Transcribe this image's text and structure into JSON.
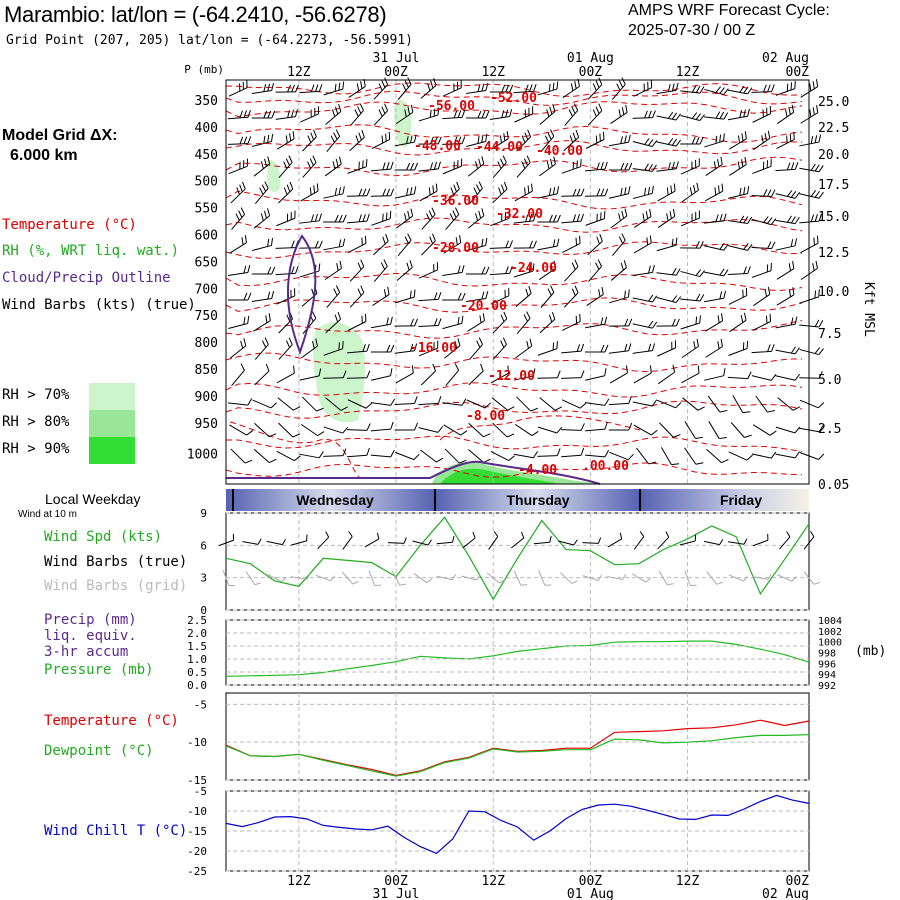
{
  "header": {
    "station_title": "Marambio:  lat/lon = (-64.2410, -56.6278)",
    "grid_point": "Grid Point (207, 205) lat/lon = (-64.2273, -56.5991)",
    "cycle_title": "AMPS WRF Forecast Cycle:",
    "cycle_value": "2025-07-30 / 00  Z"
  },
  "model_grid": {
    "label": "Model Grid ΔX:",
    "value": "6.000 km"
  },
  "time_axis": {
    "hour_labels": [
      "12Z",
      "00Z",
      "12Z",
      "00Z",
      "12Z",
      "00Z"
    ],
    "date_labels": [
      "31 Jul",
      "01 Aug",
      "02 Aug"
    ]
  },
  "weekdays": {
    "title": "Local Weekday",
    "wind_note": "Wind at 10 m",
    "days": [
      "Wednesday",
      "Thursday",
      "Friday"
    ]
  },
  "colors": {
    "temperature": "#e00000",
    "rh": "#22aa22",
    "cloud": "#5a2a8a",
    "wind": "#000000",
    "windchill": "#0000cc",
    "dewpoint": "#22bb22",
    "pressure": "#22bb22"
  },
  "cross_section": {
    "p_label": "P (mb)",
    "pressure_ticks": [
      "350",
      "400",
      "450",
      "500",
      "550",
      "600",
      "650",
      "700",
      "750",
      "800",
      "850",
      "900",
      "950",
      "1000"
    ],
    "height_ticks": [
      "25.0",
      "22.5",
      "20.0",
      "17.5",
      "15.0",
      "12.5",
      "10.0",
      "7.5",
      "5.0",
      "2.5",
      "0.05"
    ],
    "height_unit": "Kft MSL",
    "legend": {
      "temperature": "Temperature (°C)",
      "rh": "RH (%, WRT liq. wat.)",
      "cloud": "Cloud/Precip Outline",
      "wind": "Wind Barbs (kts) (true)"
    },
    "rh_levels": [
      "RH > 70%",
      "RH > 80%",
      "RH > 90%"
    ],
    "isotherm_labels": [
      "-56.00",
      "-52.00",
      "-48.00",
      "-44.00",
      "-40.00",
      "-36.00",
      "-32.00",
      "-28.00",
      "-24.00",
      "-20.00",
      "-16.00",
      "-12.00",
      "-8.00",
      "-4.00",
      ".00.00"
    ]
  },
  "panels": {
    "wind": {
      "labels": [
        "Wind Spd (kts)",
        "Wind Barbs (true)",
        "Wind Barbs (grid)"
      ],
      "yticks": [
        "9",
        "6",
        "3",
        "0"
      ]
    },
    "precip": {
      "labels": [
        "Precip (mm)",
        "liq. equiv.",
        "3-hr accum",
        "Pressure (mb)"
      ],
      "yticks": [
        "2.5",
        "2.0",
        "1.5",
        "1.0",
        "0.5",
        "0.0"
      ],
      "y2ticks": [
        "1004",
        "1002",
        "1000",
        "998",
        "996",
        "994",
        "992"
      ],
      "y2unit": "(mb)"
    },
    "temp": {
      "labels": [
        "Temperature (°C)",
        "Dewpoint (°C)"
      ],
      "yticks": [
        "-5",
        "-10",
        "-15"
      ]
    },
    "windchill": {
      "labels": [
        "Wind Chill T (°C)"
      ],
      "yticks": [
        "-5",
        "-10",
        "-15",
        "-20",
        "-25"
      ]
    }
  },
  "chart_data": [
    {
      "type": "line",
      "title": "Wind Spd (kts)",
      "x_hours": [
        0,
        3,
        6,
        9,
        12,
        15,
        18,
        21,
        24,
        27,
        30,
        33,
        36,
        39,
        42,
        45,
        48,
        51,
        54,
        57,
        60,
        63,
        66,
        69,
        72
      ],
      "series": [
        {
          "name": "Wind Spd (kts)",
          "values": [
            4.8,
            4.3,
            2.7,
            2.2,
            4.8,
            4.6,
            4.4,
            3.1,
            6.0,
            8.6,
            5.0,
            1.0,
            4.8,
            8.3,
            5.6,
            5.5,
            4.2,
            4.3,
            5.6,
            6.6,
            7.8,
            6.8,
            1.5,
            4.7,
            8.0
          ]
        }
      ],
      "ylim": [
        0,
        9
      ]
    },
    {
      "type": "line",
      "title": "Pressure (mb)",
      "x_hours": [
        0,
        3,
        6,
        9,
        12,
        15,
        18,
        21,
        24,
        27,
        30,
        33,
        36,
        39,
        42,
        45,
        48,
        51,
        54,
        57,
        60,
        63,
        66,
        69,
        72
      ],
      "series": [
        {
          "name": "Pressure (mb)",
          "values": [
            993.6,
            993.7,
            993.8,
            993.9,
            994.3,
            995.0,
            995.6,
            996.3,
            997.3,
            997.0,
            996.8,
            997.4,
            998.2,
            998.7,
            999.2,
            999.3,
            999.9,
            1000.0,
            1000.0,
            1000.1,
            1000.1,
            999.5,
            998.6,
            997.6,
            996.2
          ]
        }
      ],
      "ylim": [
        992,
        1004
      ]
    },
    {
      "type": "line",
      "title": "Temperature / Dewpoint (°C)",
      "x_hours": [
        0,
        3,
        6,
        9,
        12,
        15,
        18,
        21,
        24,
        27,
        30,
        33,
        36,
        39,
        42,
        45,
        48,
        51,
        54,
        57,
        60,
        63,
        66,
        69,
        72
      ],
      "series": [
        {
          "name": "Temperature (°C)",
          "values": [
            -10.4,
            -11.8,
            -11.9,
            -11.6,
            -12.3,
            -13.0,
            -13.6,
            -14.4,
            -13.8,
            -12.6,
            -12.0,
            -10.8,
            -11.2,
            -11.1,
            -10.8,
            -10.8,
            -8.7,
            -8.6,
            -8.5,
            -8.2,
            -8.1,
            -7.7,
            -7.1,
            -7.8,
            -7.2
          ]
        },
        {
          "name": "Dewpoint (°C)",
          "values": [
            -10.5,
            -11.8,
            -11.9,
            -11.6,
            -12.4,
            -13.1,
            -13.8,
            -14.5,
            -13.9,
            -12.7,
            -12.1,
            -10.9,
            -11.3,
            -11.2,
            -11.0,
            -11.0,
            -9.6,
            -9.7,
            -10.1,
            -10.0,
            -9.8,
            -9.4,
            -9.1,
            -9.1,
            -9.0
          ]
        }
      ],
      "ylim": [
        -15,
        -3.5
      ]
    },
    {
      "type": "line",
      "title": "Wind Chill T (°C)",
      "x_hours": [
        0,
        2,
        4,
        6,
        8,
        10,
        12,
        14,
        16,
        18,
        20,
        22,
        24,
        26,
        28,
        30,
        32,
        34,
        36,
        38,
        40,
        42,
        44,
        46,
        48,
        50,
        52,
        54,
        56,
        58,
        60,
        62,
        64,
        66,
        68,
        70,
        72
      ],
      "series": [
        {
          "name": "Wind Chill T (°C)",
          "values": [
            -13.1,
            -13.9,
            -12.9,
            -11.5,
            -11.4,
            -12.0,
            -13.6,
            -14.1,
            -14.5,
            -14.7,
            -13.8,
            -16.6,
            -18.9,
            -20.6,
            -17.0,
            -10.0,
            -10.2,
            -12.4,
            -14.0,
            -17.3,
            -15.0,
            -11.9,
            -9.6,
            -8.5,
            -8.3,
            -8.8,
            -9.8,
            -10.9,
            -12.0,
            -12.1,
            -11.0,
            -11.1,
            -9.5,
            -7.6,
            -6.1,
            -7.3,
            -8.1
          ]
        }
      ],
      "ylim": [
        -25,
        -5
      ]
    }
  ]
}
